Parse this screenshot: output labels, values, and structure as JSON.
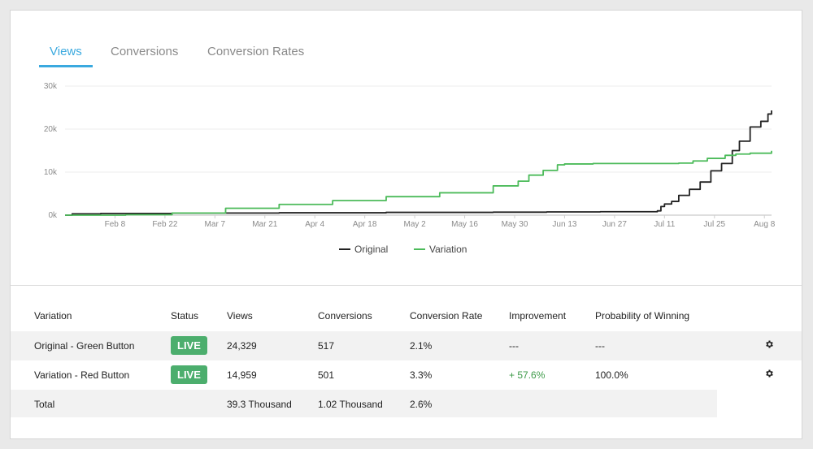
{
  "tabs": [
    {
      "label": "Views",
      "active": true
    },
    {
      "label": "Conversions",
      "active": false
    },
    {
      "label": "Conversion Rates",
      "active": false
    }
  ],
  "chart_data": {
    "type": "line",
    "title": "",
    "xlabel": "",
    "ylabel": "",
    "y_ticks": [
      "0k",
      "10k",
      "20k",
      "30k"
    ],
    "x_ticks": [
      "Feb 8",
      "Feb 22",
      "Mar 7",
      "Mar 21",
      "Apr 4",
      "Apr 18",
      "May 2",
      "May 16",
      "May 30",
      "Jun 13",
      "Jun 27",
      "Jul 11",
      "Jul 25",
      "Aug 8"
    ],
    "ylim": [
      0,
      30000
    ],
    "xlim_days": [
      0,
      198
    ],
    "grid": true,
    "legend_position": "bottom",
    "colors": {
      "Original": "#222222",
      "Variation": "#4cbb5a"
    },
    "series": [
      {
        "name": "Original",
        "x_day": [
          0,
          2,
          10,
          30,
          60,
          90,
          120,
          135,
          150,
          164,
          166,
          167,
          168,
          170,
          172,
          175,
          178,
          181,
          184,
          187,
          189,
          192,
          195,
          197,
          198
        ],
        "values": [
          0,
          300,
          400,
          500,
          550,
          650,
          700,
          750,
          800,
          800,
          1000,
          2000,
          2600,
          3200,
          4600,
          6000,
          7700,
          10300,
          12000,
          15000,
          17200,
          20500,
          21800,
          23500,
          24329
        ]
      },
      {
        "name": "Variation",
        "x_day": [
          0,
          17,
          30,
          45,
          60,
          75,
          90,
          105,
          120,
          127,
          130,
          134,
          138,
          140,
          148,
          160,
          172,
          176,
          180,
          185,
          188,
          192,
          198
        ],
        "values": [
          0,
          100,
          500,
          1600,
          2500,
          3400,
          4300,
          5200,
          6800,
          7900,
          9300,
          10400,
          11700,
          11900,
          12000,
          12000,
          12100,
          12600,
          13200,
          13900,
          14200,
          14400,
          14959
        ]
      }
    ]
  },
  "table": {
    "headers": [
      "Variation",
      "Status",
      "Views",
      "Conversions",
      "Conversion Rate",
      "Improvement",
      "Probability of Winning"
    ],
    "rows": [
      {
        "variation": "Original - Green Button",
        "status": "LIVE",
        "views": "24,329",
        "conversions": "517",
        "rate": "2.1%",
        "improvement": "---",
        "probability": "---"
      },
      {
        "variation": "Variation - Red Button",
        "status": "LIVE",
        "views": "14,959",
        "conversions": "501",
        "rate": "3.3%",
        "improvement": "+ 57.6%",
        "probability": "100.0%"
      }
    ],
    "total": {
      "label": "Total",
      "views": "39.3 Thousand",
      "conversions": "1.02 Thousand",
      "rate": "2.6%"
    }
  },
  "icons": {
    "row_settings": "gear-icon"
  }
}
